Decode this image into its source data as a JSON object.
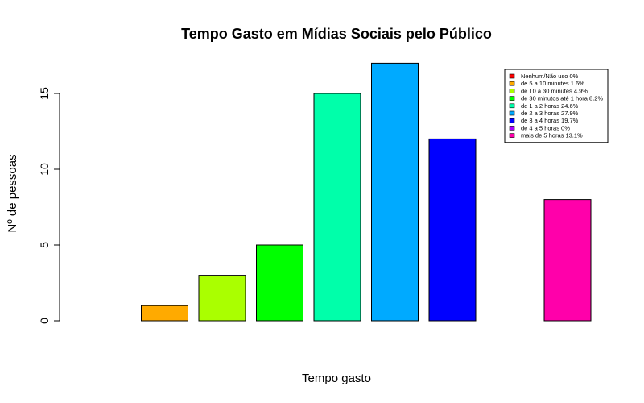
{
  "chart_data": {
    "type": "bar",
    "title": "Tempo Gasto em Mídias Sociais pelo Público",
    "xlabel": "Tempo gasto",
    "ylabel": "Nº de pessoas",
    "ylim": [
      0,
      17
    ],
    "yticks": [
      0,
      5,
      10,
      15
    ],
    "categories": [
      "Nenhum/Não uso 0%",
      "de 5 a 10 minutes 1.6%",
      "de 10 a 30 minutes 4.9%",
      "de 30 minutos até 1 hora 8.2%",
      "de 1 a 2 horas 24.6%",
      "de 2 a 3 horas 27.9%",
      "de 3 a 4 horas 19.7%",
      "de 4 a 5 horas 0%",
      "mais de 5 horas 13.1%"
    ],
    "values": [
      0,
      1,
      3,
      5,
      15,
      17,
      12,
      0,
      8
    ],
    "colors": [
      "#FF0000",
      "#FFAA00",
      "#AAFF00",
      "#00FF00",
      "#00FFAA",
      "#00AAFF",
      "#0000FF",
      "#AA00FF",
      "#FF00AA"
    ],
    "legend_position": "top-right",
    "grid": false
  }
}
